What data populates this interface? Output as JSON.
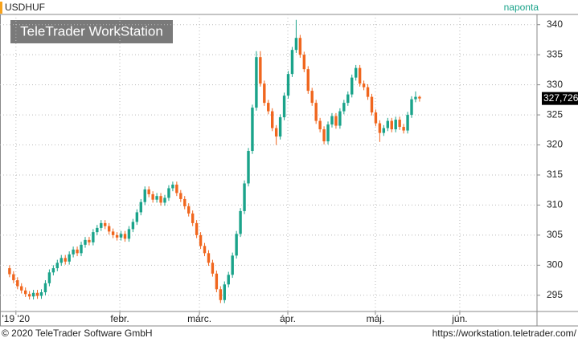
{
  "chart_data": {
    "type": "candlestick",
    "title": "USDHUF",
    "interval": "naponta",
    "watermark": "TeleTrader WorkStation",
    "up_color": "#1aa38a",
    "down_color": "#f0661e",
    "open": [
      299.5,
      298.5,
      297.5,
      296.5,
      295.8,
      295.2,
      294.8,
      295.4,
      294.9,
      295.5,
      297.0,
      298.8,
      299.5,
      300.4,
      301.2,
      300.6,
      301.8,
      302.6,
      302.0,
      303.4,
      304.2,
      303.8,
      305.5,
      306.2,
      307.0,
      306.5,
      305.6,
      305.0,
      304.6,
      305.2,
      304.4,
      306.0,
      307.2,
      308.8,
      310.5,
      312.6,
      311.8,
      310.9,
      311.5,
      310.4,
      311.2,
      312.8,
      313.4,
      312.0,
      311.0,
      309.8,
      308.6,
      307.0,
      305.0,
      303.2,
      302.0,
      300.4,
      298.6,
      296.0,
      294.2,
      296.8,
      298.4,
      301.6,
      305.2,
      309.0,
      313.6,
      319.0,
      326.2,
      334.6,
      330.2,
      327.0,
      325.6,
      322.8,
      321.4,
      324.6,
      328.2,
      331.8,
      335.8,
      337.8,
      335.0,
      332.6,
      329.0,
      327.0,
      324.0,
      322.6,
      320.6,
      323.4,
      324.8,
      323.2,
      325.6,
      327.0,
      328.4,
      331.2,
      332.8,
      330.2,
      329.6,
      328.0,
      325.4,
      323.6,
      322.0,
      322.8,
      324.0,
      322.6,
      324.2,
      323.0,
      322.4,
      325.0,
      327.6,
      328.0
    ],
    "high": [
      300.0,
      299.0,
      298.0,
      297.0,
      296.3,
      295.7,
      295.9,
      295.9,
      296.0,
      297.5,
      299.3,
      300.0,
      300.9,
      301.7,
      301.7,
      302.3,
      303.1,
      303.1,
      303.9,
      304.7,
      304.7,
      306.0,
      306.7,
      307.5,
      307.5,
      307.0,
      306.1,
      305.5,
      305.7,
      305.7,
      306.5,
      307.7,
      309.3,
      311.0,
      313.1,
      313.1,
      312.3,
      312.0,
      312.0,
      311.7,
      313.3,
      313.9,
      313.9,
      312.5,
      311.5,
      310.3,
      309.1,
      307.5,
      305.5,
      303.7,
      302.5,
      300.9,
      299.1,
      296.5,
      297.3,
      298.9,
      302.1,
      305.7,
      309.5,
      314.1,
      319.5,
      326.7,
      335.6,
      335.6,
      330.7,
      327.5,
      326.1,
      323.3,
      325.1,
      328.7,
      332.3,
      336.3,
      340.8,
      338.3,
      335.5,
      333.1,
      329.5,
      327.5,
      324.5,
      323.1,
      323.9,
      325.3,
      325.3,
      326.1,
      327.5,
      328.9,
      331.7,
      333.3,
      333.3,
      330.7,
      330.1,
      328.5,
      325.9,
      324.1,
      323.3,
      324.5,
      324.5,
      324.7,
      324.7,
      323.5,
      325.5,
      328.1,
      328.9,
      328.2
    ],
    "low": [
      298.0,
      297.0,
      296.0,
      295.3,
      294.7,
      294.3,
      294.3,
      294.4,
      294.4,
      295.0,
      296.5,
      298.3,
      299.0,
      299.9,
      300.1,
      300.1,
      301.3,
      301.5,
      301.5,
      302.9,
      303.3,
      303.3,
      305.0,
      305.7,
      306.0,
      305.1,
      304.5,
      304.1,
      304.1,
      303.9,
      303.9,
      305.5,
      306.7,
      308.3,
      310.0,
      311.3,
      310.4,
      310.4,
      309.9,
      309.9,
      310.7,
      312.3,
      311.5,
      310.5,
      309.3,
      308.1,
      306.5,
      304.5,
      302.7,
      301.5,
      299.9,
      298.1,
      295.5,
      293.7,
      293.7,
      296.3,
      297.9,
      301.1,
      304.7,
      308.5,
      313.1,
      318.5,
      325.7,
      329.7,
      326.5,
      325.1,
      322.3,
      320.0,
      320.9,
      324.1,
      327.7,
      331.3,
      335.3,
      334.5,
      332.1,
      328.5,
      326.5,
      323.5,
      322.1,
      320.1,
      320.1,
      322.9,
      322.7,
      322.7,
      325.1,
      326.5,
      327.9,
      330.7,
      329.7,
      329.1,
      327.5,
      324.9,
      323.1,
      320.5,
      321.5,
      322.3,
      322.1,
      322.1,
      322.5,
      321.9,
      321.9,
      324.5,
      327.1,
      327.2
    ],
    "close": [
      298.5,
      297.5,
      296.5,
      295.8,
      295.2,
      294.8,
      295.4,
      294.9,
      295.5,
      297.0,
      298.8,
      299.5,
      300.4,
      301.2,
      300.6,
      301.8,
      302.6,
      302.0,
      303.4,
      304.2,
      303.8,
      305.5,
      306.2,
      307.0,
      306.5,
      305.6,
      305.0,
      304.6,
      305.2,
      304.4,
      306.0,
      307.2,
      308.8,
      310.5,
      312.6,
      311.8,
      310.9,
      311.5,
      310.4,
      311.2,
      312.8,
      313.4,
      312.0,
      311.0,
      309.8,
      308.6,
      307.0,
      305.0,
      303.2,
      302.0,
      300.4,
      298.6,
      296.0,
      294.2,
      296.8,
      298.4,
      301.6,
      305.2,
      309.0,
      313.6,
      319.0,
      326.2,
      334.6,
      330.2,
      327.0,
      325.6,
      322.8,
      321.4,
      324.6,
      328.2,
      331.8,
      335.8,
      337.8,
      335.0,
      332.6,
      329.0,
      327.0,
      324.0,
      322.6,
      320.6,
      323.4,
      324.8,
      323.2,
      325.6,
      327.0,
      328.4,
      331.2,
      332.8,
      330.2,
      329.6,
      328.0,
      325.4,
      323.6,
      322.0,
      322.8,
      324.0,
      322.6,
      324.2,
      323.0,
      322.4,
      325.0,
      327.6,
      328.0,
      327.726
    ],
    "last_price": {
      "value": 327.726,
      "label": "327,726"
    },
    "xlim": [
      -2.4,
      132.5
    ],
    "xticks": [
      {
        "value": 1.6,
        "label": "'19 '20"
      },
      {
        "value": 27.7,
        "label": "febr."
      },
      {
        "value": 47.7,
        "label": "márc."
      },
      {
        "value": 69.9,
        "label": "ápr."
      },
      {
        "value": 91.9,
        "label": "máj."
      },
      {
        "value": 113.1,
        "label": "jún."
      }
    ],
    "ylim": [
      292.3,
      341.7
    ],
    "yticks": [
      295,
      300,
      305,
      310,
      315,
      320,
      325,
      330,
      335,
      340
    ],
    "grid": true,
    "footer_left": "© 2020 TeleTrader Software GmbH",
    "footer_right": "https://workstation.teletrader.com/"
  }
}
